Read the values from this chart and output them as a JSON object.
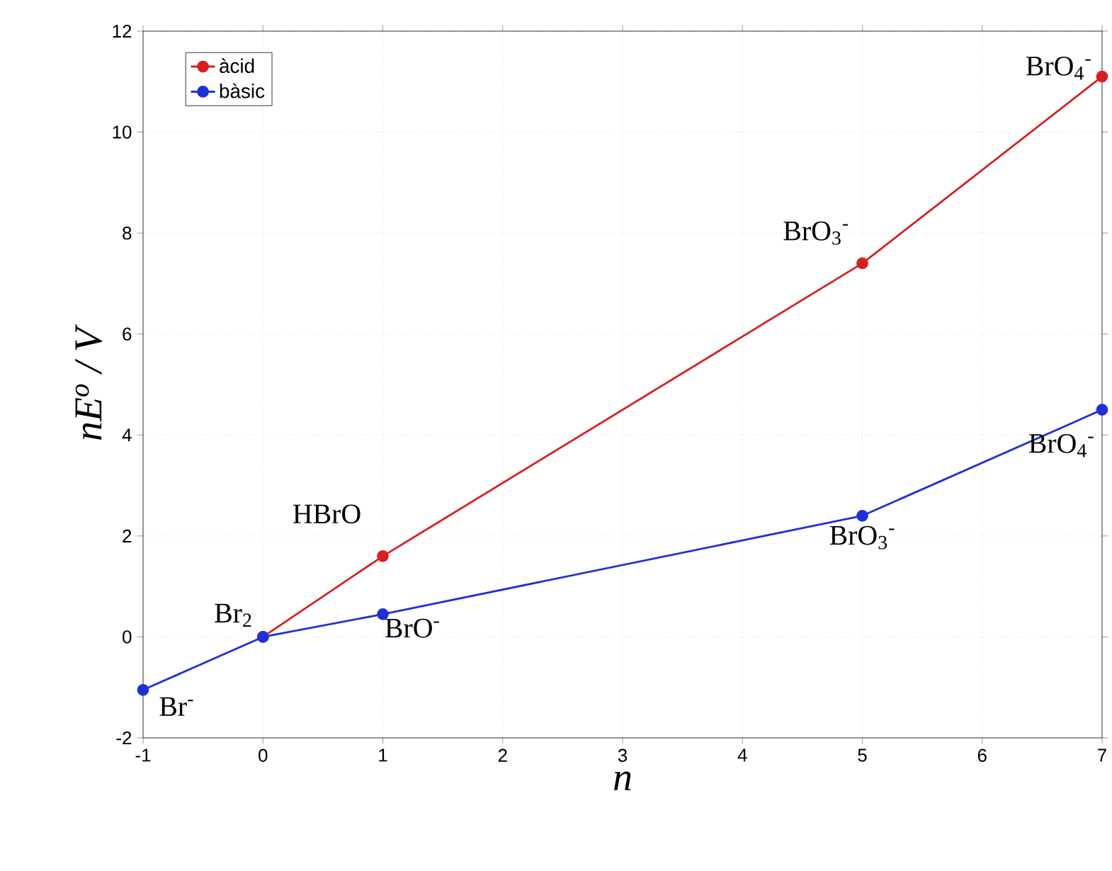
{
  "chart_data": {
    "type": "line",
    "xlabel": "n",
    "ylabel": "nE$^{o}$ / V",
    "xlim": [
      -1,
      7
    ],
    "ylim": [
      -2,
      12
    ],
    "xticks": [
      -1,
      0,
      1,
      2,
      3,
      4,
      5,
      6,
      7
    ],
    "yticks": [
      -2,
      0,
      2,
      4,
      6,
      8,
      10,
      12
    ],
    "grid": true,
    "legend": "top left",
    "marker": "circle",
    "line_style": "solid",
    "series": [
      {
        "name": "àcid",
        "color": "#d62020",
        "x": [
          0,
          1,
          5,
          7
        ],
        "values": [
          0,
          1.6,
          7.4,
          11.1
        ]
      },
      {
        "name": "bàsic",
        "color": "#2030d8",
        "x": [
          -1,
          0,
          1,
          5,
          7
        ],
        "values": [
          -1.05,
          0,
          0.45,
          2.4,
          4.5
        ]
      }
    ],
    "annotations": [
      {
        "text": "Br$^{-}$",
        "x": -1,
        "y": -1.05
      },
      {
        "text": "Br$_{2}$",
        "x": 0,
        "y": 0
      },
      {
        "text": "HBrO",
        "x": 1,
        "y": 1.6
      },
      {
        "text": "BrO$^{-}$",
        "x": 1,
        "y": 0.45
      },
      {
        "text": "BrO$_{3}$$^{-}$",
        "x": 5,
        "y": 7.4
      },
      {
        "text": "BrO$_{3}$$^{-}$",
        "x": 5,
        "y": 2.4
      },
      {
        "text": "BrO$_{4}$$^{-}$",
        "x": 7,
        "y": 11.1
      },
      {
        "text": "BrO$_{4}$$^{-}$",
        "x": 7,
        "y": 4.5
      }
    ]
  }
}
